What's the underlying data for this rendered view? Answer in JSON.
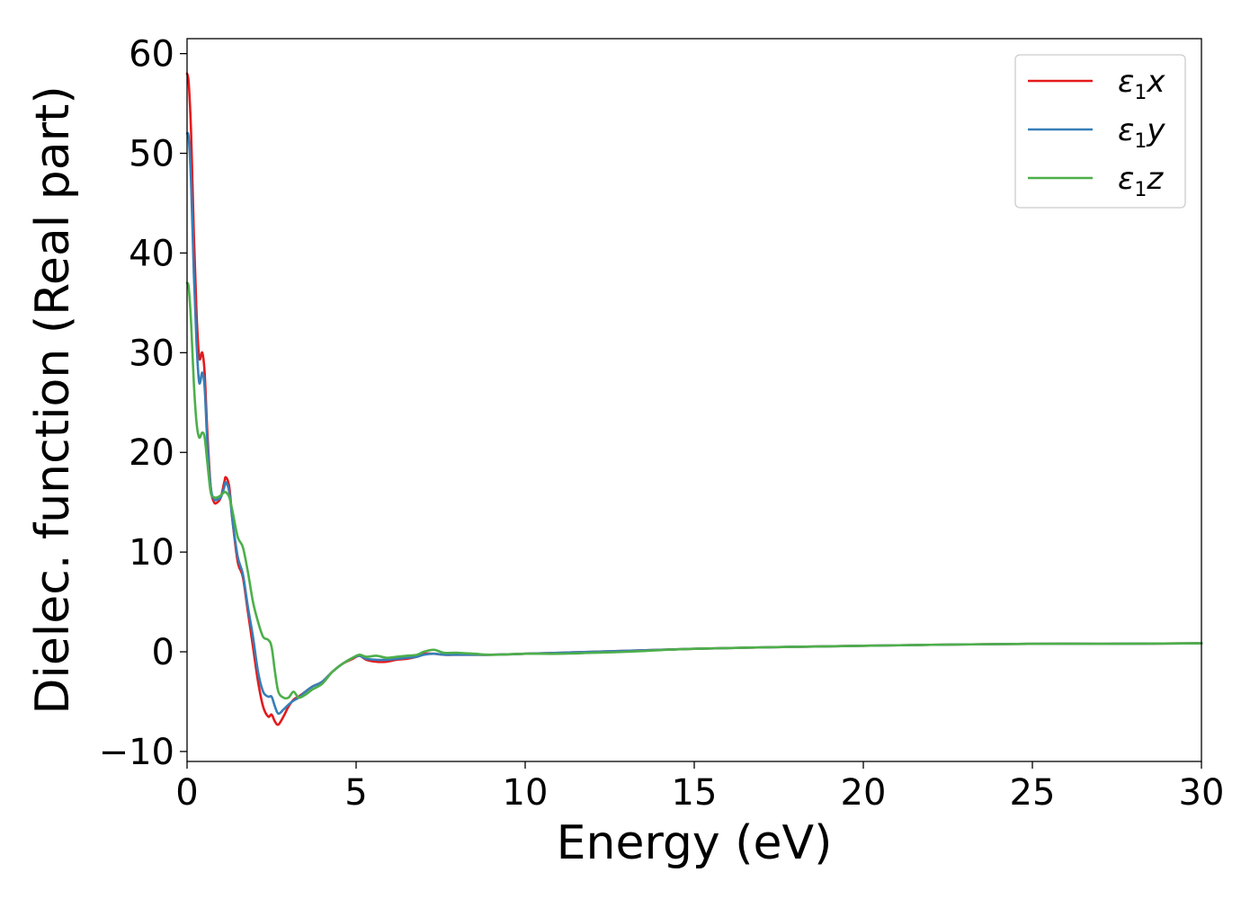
{
  "chart_data": {
    "type": "line",
    "title": "",
    "xlabel": "Energy (eV)",
    "ylabel": "Dielec. function (Real part)",
    "xlim": [
      0,
      30
    ],
    "ylim": [
      -11,
      61.5
    ],
    "x_ticks": [
      0,
      5,
      10,
      15,
      20,
      25,
      30
    ],
    "x_tick_labels": [
      "0",
      "5",
      "10",
      "15",
      "20",
      "25",
      "30"
    ],
    "y_ticks": [
      -10,
      0,
      10,
      20,
      30,
      40,
      50,
      60
    ],
    "y_tick_labels": [
      "−10",
      "0",
      "10",
      "20",
      "30",
      "40",
      "50",
      "60"
    ],
    "grid": false,
    "legend_position": "top-right",
    "series": [
      {
        "name": "ε₁x",
        "legend_main": "ε",
        "legend_sub": "1",
        "legend_suffix": "x",
        "color": "#e41a1c",
        "points": [
          [
            0.0,
            58.0
          ],
          [
            0.05,
            57.0
          ],
          [
            0.12,
            52.0
          ],
          [
            0.2,
            42.0
          ],
          [
            0.28,
            34.0
          ],
          [
            0.36,
            29.5
          ],
          [
            0.45,
            30.0
          ],
          [
            0.52,
            28.0
          ],
          [
            0.6,
            22.0
          ],
          [
            0.7,
            16.5
          ],
          [
            0.8,
            15.0
          ],
          [
            0.9,
            15.0
          ],
          [
            1.0,
            15.5
          ],
          [
            1.1,
            17.0
          ],
          [
            1.15,
            17.5
          ],
          [
            1.25,
            16.5
          ],
          [
            1.35,
            13.0
          ],
          [
            1.5,
            9.0
          ],
          [
            1.65,
            7.5
          ],
          [
            1.8,
            4.0
          ],
          [
            1.95,
            0.5
          ],
          [
            2.1,
            -3.0
          ],
          [
            2.25,
            -5.5
          ],
          [
            2.4,
            -6.5
          ],
          [
            2.5,
            -6.3
          ],
          [
            2.6,
            -7.0
          ],
          [
            2.7,
            -7.3
          ],
          [
            2.85,
            -6.5
          ],
          [
            3.0,
            -5.5
          ],
          [
            3.15,
            -4.8
          ],
          [
            3.3,
            -4.5
          ],
          [
            3.5,
            -4.0
          ],
          [
            3.7,
            -3.5
          ],
          [
            4.0,
            -3.0
          ],
          [
            4.3,
            -2.0
          ],
          [
            4.6,
            -1.2
          ],
          [
            4.9,
            -0.7
          ],
          [
            5.1,
            -0.4
          ],
          [
            5.3,
            -0.8
          ],
          [
            5.6,
            -1.0
          ],
          [
            5.9,
            -1.0
          ],
          [
            6.2,
            -0.8
          ],
          [
            6.5,
            -0.7
          ],
          [
            6.8,
            -0.5
          ],
          [
            7.0,
            -0.2
          ],
          [
            7.3,
            -0.2
          ],
          [
            7.6,
            -0.3
          ],
          [
            8.0,
            -0.3
          ],
          [
            8.5,
            -0.3
          ],
          [
            9.0,
            -0.3
          ],
          [
            10.0,
            -0.2
          ],
          [
            11.0,
            -0.1
          ],
          [
            12.0,
            0.0
          ],
          [
            13.0,
            0.1
          ],
          [
            15.0,
            0.3
          ],
          [
            18.0,
            0.5
          ],
          [
            20.0,
            0.6
          ],
          [
            22.0,
            0.7
          ],
          [
            25.0,
            0.8
          ],
          [
            27.0,
            0.8
          ],
          [
            30.0,
            0.85
          ]
        ]
      },
      {
        "name": "ε₁y",
        "legend_main": "ε",
        "legend_sub": "1",
        "legend_suffix": "y",
        "color": "#377eb8",
        "points": [
          [
            0.0,
            52.0
          ],
          [
            0.05,
            51.5
          ],
          [
            0.12,
            47.0
          ],
          [
            0.2,
            38.0
          ],
          [
            0.28,
            31.0
          ],
          [
            0.36,
            27.0
          ],
          [
            0.45,
            28.0
          ],
          [
            0.52,
            26.5
          ],
          [
            0.6,
            21.0
          ],
          [
            0.7,
            16.5
          ],
          [
            0.8,
            15.3
          ],
          [
            0.9,
            15.3
          ],
          [
            1.0,
            15.5
          ],
          [
            1.1,
            16.5
          ],
          [
            1.15,
            17.0
          ],
          [
            1.25,
            16.0
          ],
          [
            1.35,
            13.0
          ],
          [
            1.5,
            9.5
          ],
          [
            1.65,
            7.8
          ],
          [
            1.8,
            4.5
          ],
          [
            1.95,
            1.5
          ],
          [
            2.1,
            -2.0
          ],
          [
            2.25,
            -4.0
          ],
          [
            2.4,
            -4.5
          ],
          [
            2.5,
            -4.5
          ],
          [
            2.6,
            -5.5
          ],
          [
            2.7,
            -6.2
          ],
          [
            2.85,
            -5.8
          ],
          [
            3.0,
            -5.3
          ],
          [
            3.15,
            -4.9
          ],
          [
            3.3,
            -4.6
          ],
          [
            3.5,
            -4.0
          ],
          [
            3.7,
            -3.5
          ],
          [
            4.0,
            -3.0
          ],
          [
            4.3,
            -2.0
          ],
          [
            4.6,
            -1.2
          ],
          [
            4.9,
            -0.6
          ],
          [
            5.1,
            -0.4
          ],
          [
            5.3,
            -0.7
          ],
          [
            5.6,
            -0.8
          ],
          [
            5.9,
            -0.8
          ],
          [
            6.2,
            -0.7
          ],
          [
            6.5,
            -0.6
          ],
          [
            6.8,
            -0.5
          ],
          [
            7.0,
            -0.3
          ],
          [
            7.3,
            -0.2
          ],
          [
            7.6,
            -0.3
          ],
          [
            8.0,
            -0.3
          ],
          [
            8.5,
            -0.3
          ],
          [
            9.0,
            -0.3
          ],
          [
            10.0,
            -0.2
          ],
          [
            11.0,
            -0.1
          ],
          [
            12.0,
            0.0
          ],
          [
            13.0,
            0.1
          ],
          [
            15.0,
            0.3
          ],
          [
            18.0,
            0.5
          ],
          [
            20.0,
            0.6
          ],
          [
            22.0,
            0.7
          ],
          [
            25.0,
            0.8
          ],
          [
            27.0,
            0.8
          ],
          [
            30.0,
            0.85
          ]
        ]
      },
      {
        "name": "ε₁z",
        "legend_main": "ε",
        "legend_sub": "1",
        "legend_suffix": "z",
        "color": "#4daf4a",
        "points": [
          [
            0.0,
            37.0
          ],
          [
            0.05,
            36.5
          ],
          [
            0.12,
            33.0
          ],
          [
            0.2,
            27.0
          ],
          [
            0.28,
            23.0
          ],
          [
            0.36,
            21.5
          ],
          [
            0.45,
            22.0
          ],
          [
            0.52,
            21.5
          ],
          [
            0.6,
            19.0
          ],
          [
            0.7,
            16.0
          ],
          [
            0.8,
            15.5
          ],
          [
            0.9,
            15.5
          ],
          [
            1.0,
            15.7
          ],
          [
            1.1,
            16.0
          ],
          [
            1.15,
            16.0
          ],
          [
            1.25,
            15.5
          ],
          [
            1.35,
            14.0
          ],
          [
            1.5,
            11.5
          ],
          [
            1.65,
            10.5
          ],
          [
            1.8,
            8.0
          ],
          [
            1.95,
            5.0
          ],
          [
            2.1,
            3.0
          ],
          [
            2.25,
            1.5
          ],
          [
            2.4,
            1.2
          ],
          [
            2.5,
            0.5
          ],
          [
            2.6,
            -2.0
          ],
          [
            2.7,
            -4.0
          ],
          [
            2.85,
            -4.6
          ],
          [
            3.0,
            -4.6
          ],
          [
            3.15,
            -4.0
          ],
          [
            3.3,
            -4.6
          ],
          [
            3.5,
            -4.3
          ],
          [
            3.7,
            -3.8
          ],
          [
            4.0,
            -3.2
          ],
          [
            4.3,
            -2.0
          ],
          [
            4.6,
            -1.2
          ],
          [
            4.9,
            -0.6
          ],
          [
            5.1,
            -0.3
          ],
          [
            5.3,
            -0.5
          ],
          [
            5.6,
            -0.4
          ],
          [
            5.9,
            -0.6
          ],
          [
            6.2,
            -0.5
          ],
          [
            6.5,
            -0.4
          ],
          [
            6.8,
            -0.3
          ],
          [
            7.0,
            0.0
          ],
          [
            7.3,
            0.2
          ],
          [
            7.6,
            -0.1
          ],
          [
            8.0,
            -0.1
          ],
          [
            8.5,
            -0.2
          ],
          [
            9.0,
            -0.3
          ],
          [
            10.0,
            -0.2
          ],
          [
            11.0,
            -0.2
          ],
          [
            12.0,
            -0.1
          ],
          [
            13.0,
            0.0
          ],
          [
            15.0,
            0.3
          ],
          [
            18.0,
            0.5
          ],
          [
            20.0,
            0.6
          ],
          [
            22.0,
            0.7
          ],
          [
            25.0,
            0.8
          ],
          [
            27.0,
            0.8
          ],
          [
            30.0,
            0.85
          ]
        ]
      }
    ]
  }
}
